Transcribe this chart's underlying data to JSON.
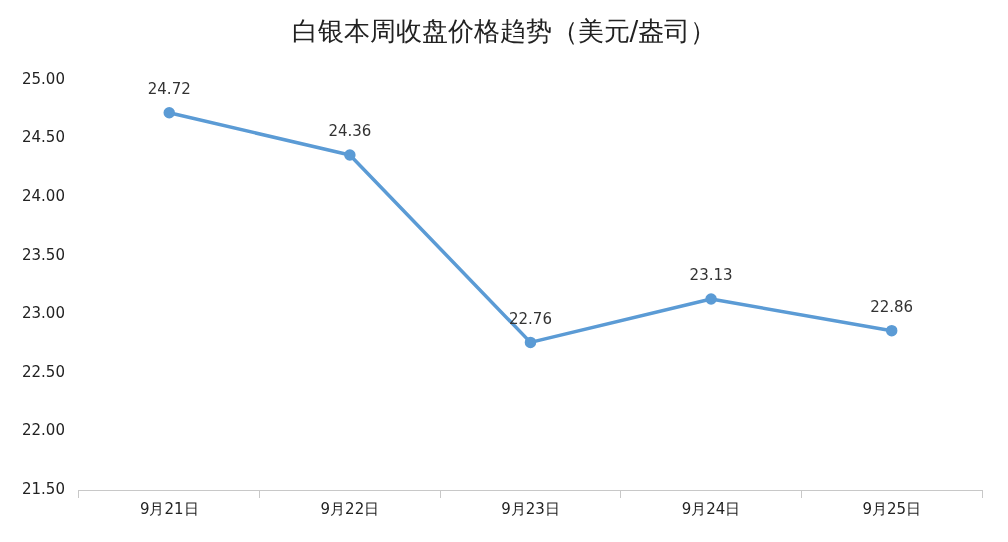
{
  "chart_data": {
    "type": "line",
    "title": "白银本周收盘价格趋势（美元/盎司）",
    "categories": [
      "9月21日",
      "9月22日",
      "9月23日",
      "9月24日",
      "9月25日"
    ],
    "series": [
      {
        "color": "#5b9bd5",
        "values": [
          24.72,
          24.36,
          22.76,
          23.13,
          22.86
        ]
      }
    ],
    "ylim": [
      21.5,
      25
    ],
    "yticks": [
      {
        "value": 21.5,
        "label": "21.50"
      },
      {
        "value": 22,
        "label": "22.00"
      },
      {
        "value": 22.5,
        "label": "22.50"
      },
      {
        "value": 23,
        "label": "23.00"
      },
      {
        "value": 23.5,
        "label": "23.50"
      },
      {
        "value": 24,
        "label": "24.00"
      },
      {
        "value": 24.5,
        "label": "24.50"
      },
      {
        "value": 25,
        "label": "25.00"
      }
    ],
    "grid": false,
    "legend": false,
    "marker": "circle",
    "line_style": "solid",
    "data_labels": true
  }
}
